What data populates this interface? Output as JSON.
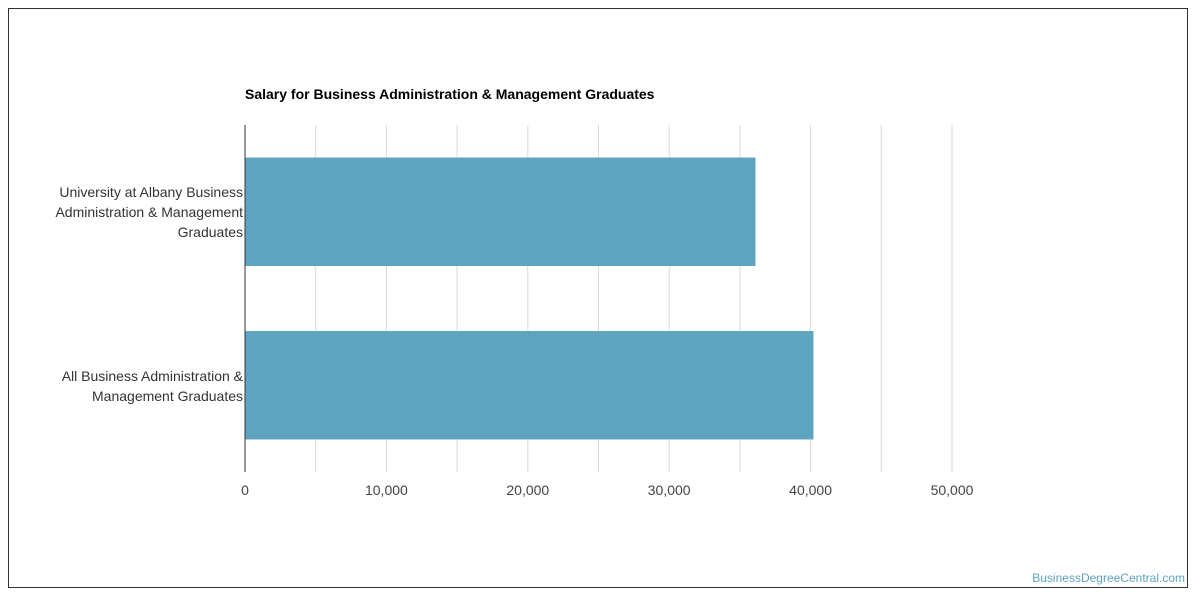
{
  "chart_data": {
    "type": "bar",
    "orientation": "horizontal",
    "title": "Salary for Business Administration & Management Graduates",
    "categories": [
      "University at Albany Business Administration & Management Graduates",
      "All Business Administration & Management Graduates"
    ],
    "category_lines": [
      [
        "University at Albany Business",
        "Administration & Management",
        "Graduates"
      ],
      [
        "All Business Administration &",
        "Management Graduates"
      ]
    ],
    "values": [
      36100,
      40200
    ],
    "xlim": [
      0,
      50000
    ],
    "x_ticks": [
      0,
      10000,
      20000,
      30000,
      40000,
      50000
    ],
    "x_tick_labels": [
      "0",
      "10,000",
      "20,000",
      "30,000",
      "40,000",
      "50,000"
    ],
    "grid": true,
    "xlabel": "",
    "ylabel": ""
  },
  "colors": {
    "bar": "#5ea3bf",
    "watermark": "#5ea3bf"
  },
  "watermark": "BusinessDegreeCentral.com"
}
